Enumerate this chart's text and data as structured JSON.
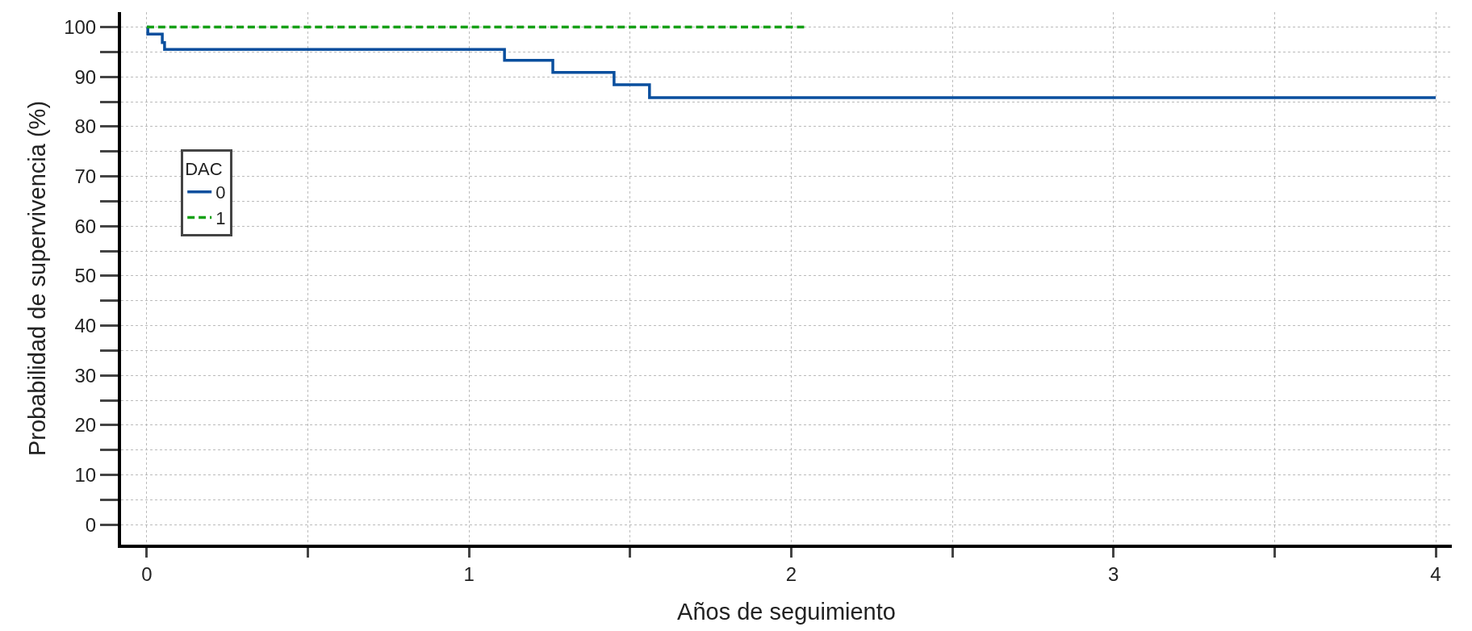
{
  "chart_data": {
    "type": "step",
    "xlabel": "Años de seguimiento",
    "ylabel": "Probabilidad de supervivencia (%)",
    "legend_title": "DAC",
    "xlim": [
      -0.08,
      4.05
    ],
    "ylim": [
      -4,
      103
    ],
    "xticks": [
      0,
      {
        "value": 0.5,
        "label": null
      },
      1,
      {
        "value": 1.5,
        "label": null
      },
      2,
      {
        "value": 2.5,
        "label": null
      },
      3,
      {
        "value": 3.5,
        "label": null
      },
      4
    ],
    "yticks": [
      0,
      {
        "value": 5,
        "label": null
      },
      10,
      {
        "value": 15,
        "label": null
      },
      20,
      {
        "value": 25,
        "label": null
      },
      30,
      {
        "value": 35,
        "label": null
      },
      40,
      {
        "value": 45,
        "label": null
      },
      50,
      {
        "value": 55,
        "label": null
      },
      60,
      {
        "value": 65,
        "label": null
      },
      70,
      {
        "value": 75,
        "label": null
      },
      80,
      {
        "value": 85,
        "label": null
      },
      90,
      {
        "value": 95,
        "label": null
      },
      100
    ],
    "grid": true,
    "legend": "left",
    "series": [
      {
        "name": "0",
        "color": "#0a4f9e",
        "line_style": "solid",
        "x": [
          0,
          0.003,
          0.048,
          0.055,
          1.11,
          1.26,
          1.45,
          1.56,
          4
        ],
        "values": [
          100,
          98.6,
          96.9,
          95.5,
          93.3,
          90.9,
          88.4,
          85.8,
          85.8
        ]
      },
      {
        "name": "1",
        "color": "#16a016",
        "line_style": "dashed",
        "x": [
          0,
          2.04
        ],
        "values": [
          100,
          100
        ]
      }
    ]
  }
}
